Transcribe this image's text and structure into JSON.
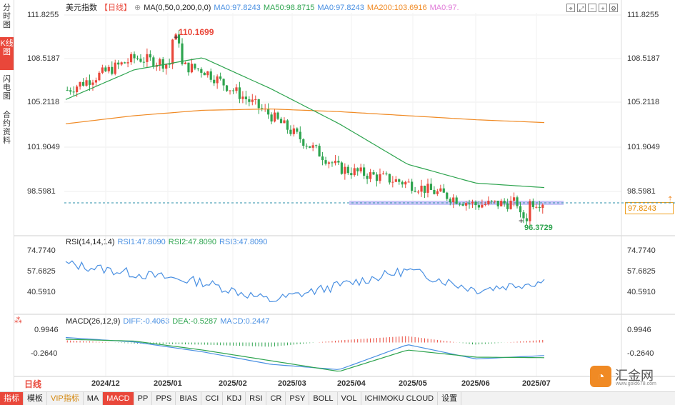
{
  "vertical_tabs": [
    {
      "label": "分时图",
      "active": false
    },
    {
      "label": "K线图",
      "active": true
    },
    {
      "label": "闪电图",
      "active": false
    },
    {
      "label": "合约资料",
      "active": false
    }
  ],
  "header": {
    "symbol": "美元指数",
    "period": "【日线】",
    "ma_params": "MA(0,50,0,200,0,0)",
    "ma1": "MA0:97.8243",
    "ma2": "MA50:98.8715",
    "ma3": "MA0:97.8243",
    "ma4": "MA200:103.6916",
    "ma5": "MA0:97.",
    "colors": {
      "ma1": "#4a90e2",
      "ma2": "#2ea44f",
      "ma3": "#4a90e2",
      "ma4": "#f08a24",
      "ma5": "#e07ad8"
    }
  },
  "toolbar_icons": [
    "fit-icon",
    "expand-icon",
    "zoom-out-icon",
    "zoom-in-icon",
    "settings-icon"
  ],
  "price_axis": {
    "labels": [
      "111.8255",
      "108.5187",
      "105.2118",
      "101.9049",
      "98.5981"
    ]
  },
  "annotations": {
    "high": "110.1699",
    "low": "96.3729",
    "current": "97.8243"
  },
  "rsi": {
    "title": "RSI(14,14,14)",
    "rsi1": "RSI1:47.8090",
    "rsi2": "RSI2:47.8090",
    "rsi3": "RSI3:47.8090",
    "axis": [
      "74.7740",
      "57.6825",
      "40.5910"
    ]
  },
  "macd": {
    "title": "MACD(26,12,9)",
    "diff": "DIFF:-0.4063",
    "dea": "DEA:-0.5287",
    "macd": "MACD:0.2447",
    "axis": [
      "0.9946",
      "-0.2640"
    ]
  },
  "x_axis": {
    "labels": [
      "2024/12",
      "2025/01",
      "2025/02",
      "2025/03",
      "2025/04",
      "2025/05",
      "2025/06",
      "2025/07"
    ]
  },
  "period_button": "日线",
  "bottom_tabs": [
    {
      "label": "指标",
      "active": true
    },
    {
      "label": "模板",
      "active": false
    },
    {
      "label": "VIP指标",
      "active": false,
      "vip": true
    },
    {
      "label": "MA",
      "active": false
    },
    {
      "label": "MACD",
      "active": true
    },
    {
      "label": "PP",
      "active": false
    },
    {
      "label": "PPS",
      "active": false
    },
    {
      "label": "BIAS",
      "active": false
    },
    {
      "label": "CCI",
      "active": false
    },
    {
      "label": "KDJ",
      "active": false
    },
    {
      "label": "RSI",
      "active": false
    },
    {
      "label": "CR",
      "active": false
    },
    {
      "label": "PSY",
      "active": false
    },
    {
      "label": "BOLL",
      "active": false
    },
    {
      "label": "VOL",
      "active": false
    },
    {
      "label": "ICHIMOKU CLOUD",
      "active": false
    },
    {
      "label": "设置",
      "active": false
    }
  ],
  "logo": {
    "name": "汇金网",
    "url": "www.gold678.com"
  },
  "chart_data": {
    "type": "candlestick",
    "dates": [
      "2024/12",
      "2025/01",
      "2025/02",
      "2025/03",
      "2025/04",
      "2025/05",
      "2025/06",
      "2025/07"
    ],
    "close": [
      106.1,
      108.5,
      107.6,
      104.2,
      100.3,
      99.2,
      97.6,
      97.82
    ],
    "ma50": [
      105.4,
      107.6,
      108.5,
      106.2,
      103.6,
      100.6,
      99.2,
      98.87
    ],
    "ma200": [
      103.6,
      104.2,
      104.6,
      104.7,
      104.5,
      104.2,
      103.9,
      103.69
    ],
    "rsi": [
      64,
      55,
      47,
      30,
      44,
      58,
      40,
      47.81
    ],
    "macd_diff": [
      0.6,
      0.35,
      -0.2,
      -0.9,
      -1.2,
      0.2,
      -0.6,
      -0.41
    ],
    "macd_dea": [
      0.5,
      0.4,
      -0.1,
      -0.7,
      -1.3,
      -0.1,
      -0.5,
      -0.53
    ],
    "ylim": [
      95.3,
      111.8255
    ],
    "high": 110.1699,
    "low": 96.3729,
    "last": 97.8243,
    "colors": {
      "up": "#e9473a",
      "down": "#2ea44f",
      "ma50": "#2ea44f",
      "ma200": "#f08a24",
      "rsi": "#4a90e2",
      "diff": "#4a90e2",
      "dea": "#2ea44f"
    }
  }
}
